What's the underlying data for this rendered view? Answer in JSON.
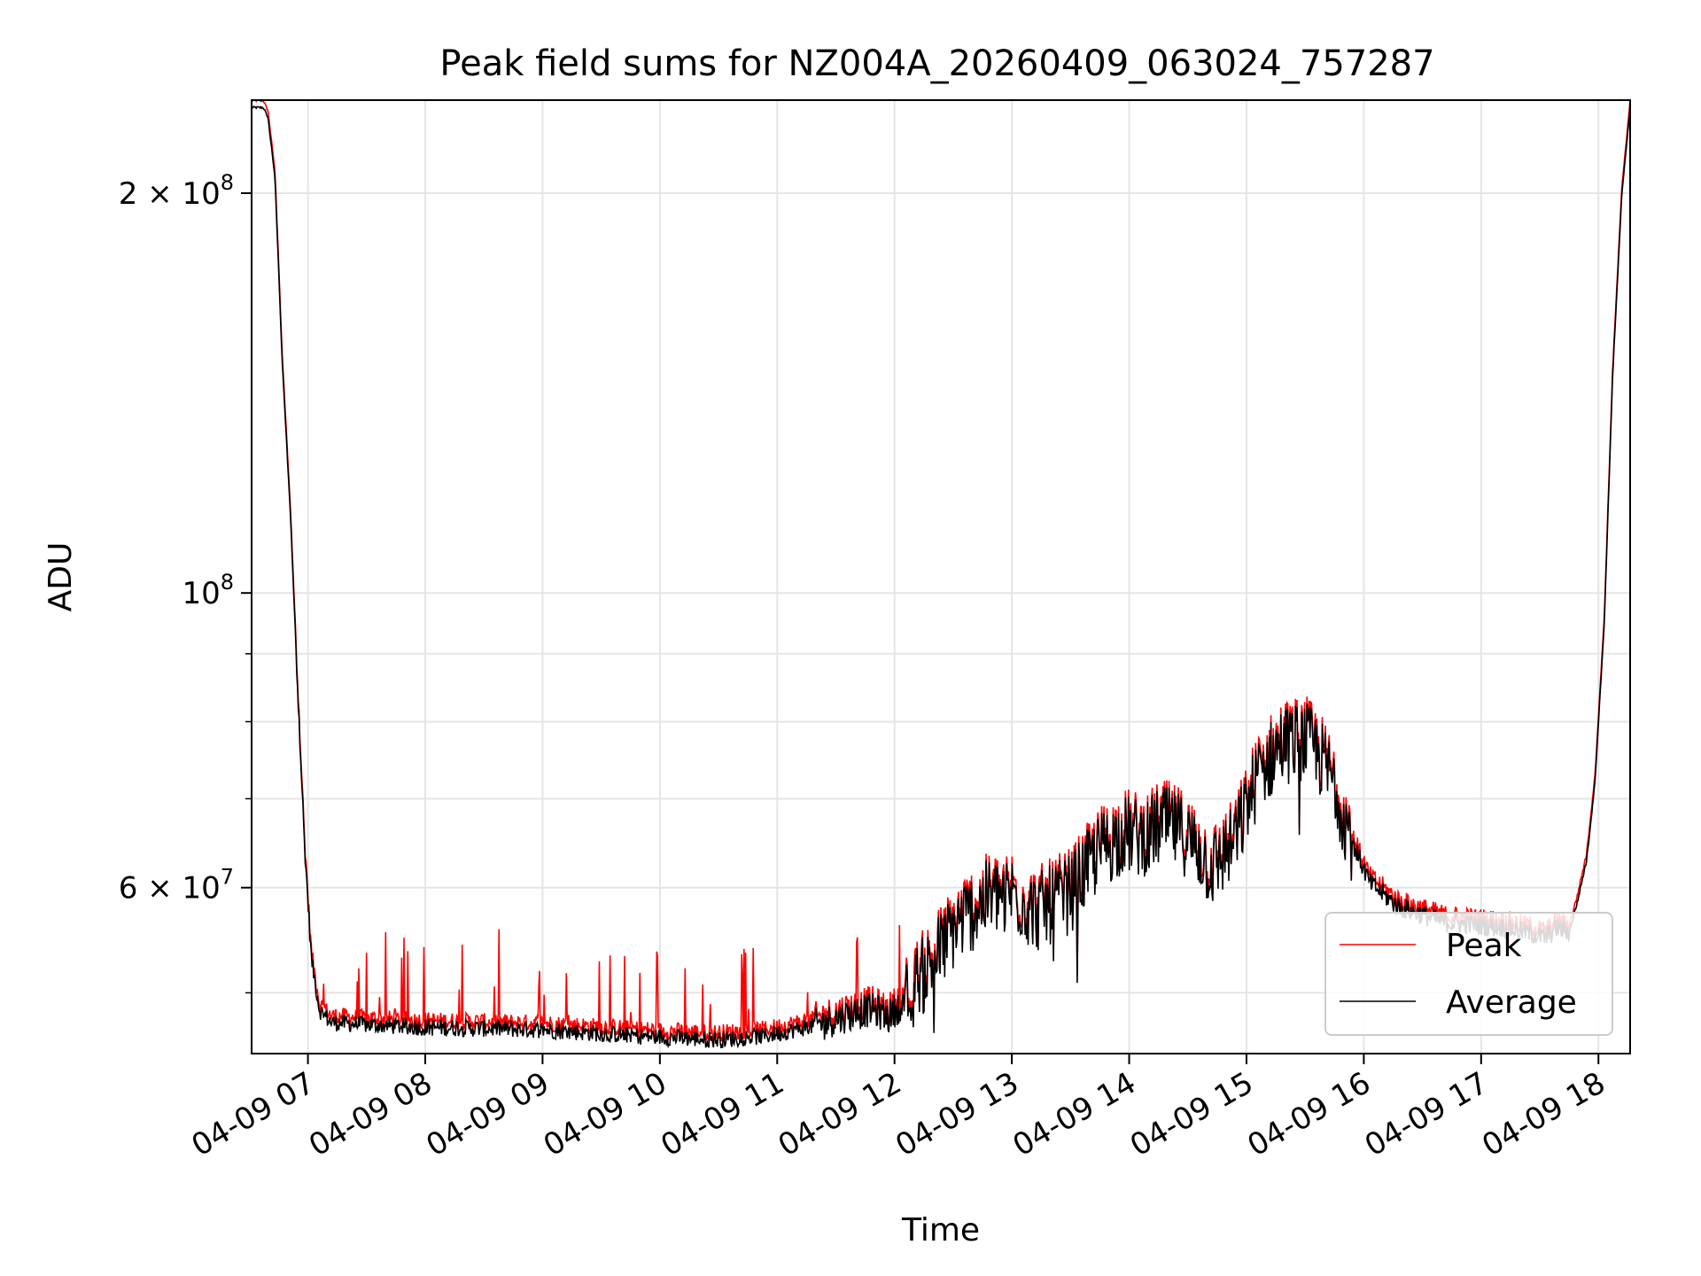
{
  "chart_data": {
    "type": "line",
    "title": "Peak field sums for NZ004A_20260409_063024_757287",
    "xlabel": "Time",
    "ylabel": "ADU",
    "y_scale": "log",
    "xlim": [
      6.52,
      18.27
    ],
    "ylim": [
      45000000,
      235000000
    ],
    "grid": true,
    "legend_position": "lower right",
    "x_ticks": [
      {
        "value": 7,
        "label": "04-09 07"
      },
      {
        "value": 8,
        "label": "04-09 08"
      },
      {
        "value": 9,
        "label": "04-09 09"
      },
      {
        "value": 10,
        "label": "04-09 10"
      },
      {
        "value": 11,
        "label": "04-09 11"
      },
      {
        "value": 12,
        "label": "04-09 12"
      },
      {
        "value": 13,
        "label": "04-09 13"
      },
      {
        "value": 14,
        "label": "04-09 14"
      },
      {
        "value": 15,
        "label": "04-09 15"
      },
      {
        "value": 16,
        "label": "04-09 16"
      },
      {
        "value": 17,
        "label": "04-09 17"
      },
      {
        "value": 18,
        "label": "04-09 18"
      }
    ],
    "y_major_ticks": [
      {
        "value": 200000000,
        "mantissa": "2",
        "exponent": "8"
      },
      {
        "value": 100000000,
        "mantissa": "",
        "exponent": "8"
      },
      {
        "value": 60000000,
        "mantissa": "6",
        "exponent": "7"
      }
    ],
    "y_minor_ticks": [
      50000000,
      70000000,
      80000000,
      90000000
    ],
    "series": [
      {
        "name": "Peak",
        "color": "#ff0000",
        "spike_scale": 1.0
      },
      {
        "name": "Average",
        "color": "#000000",
        "spike_scale": 0.0
      }
    ],
    "envelope": {
      "x": [
        6.52,
        6.62,
        6.66,
        6.72,
        6.78,
        6.85,
        6.92,
        6.97,
        7.03,
        7.1,
        7.2,
        7.5,
        8.0,
        8.5,
        9.0,
        9.5,
        10.0,
        10.5,
        10.9,
        11.3,
        11.6,
        11.8,
        11.95,
        12.1,
        12.3,
        12.55,
        12.8,
        13.0,
        13.2,
        13.5,
        13.75,
        13.95,
        14.1,
        14.3,
        14.45,
        14.6,
        14.7,
        14.9,
        15.1,
        15.3,
        15.5,
        15.6,
        15.75,
        15.9,
        16.05,
        16.3,
        16.7,
        17.0,
        17.2,
        17.4,
        17.55,
        17.65,
        17.75,
        17.82,
        17.9,
        17.97,
        18.05,
        18.12,
        18.2,
        18.27
      ],
      "y": [
        232000000,
        232000000,
        228000000,
        205000000,
        150000000,
        115000000,
        82000000,
        65000000,
        53000000,
        48500000,
        47500000,
        47300000,
        47100000,
        47000000,
        46900000,
        46600000,
        46300000,
        46100000,
        46400000,
        47200000,
        48100000,
        48600000,
        48000000,
        49500000,
        52500000,
        56500000,
        59000000,
        59500000,
        57500000,
        59500000,
        64000000,
        66000000,
        65500000,
        67000000,
        66000000,
        64000000,
        62000000,
        65000000,
        73000000,
        77000000,
        77500000,
        76000000,
        72000000,
        65000000,
        60500000,
        58000000,
        56500000,
        56200000,
        56000000,
        55500000,
        55000000,
        56000000,
        55500000,
        58500000,
        63000000,
        72000000,
        95000000,
        145000000,
        200000000,
        232000000
      ]
    }
  }
}
